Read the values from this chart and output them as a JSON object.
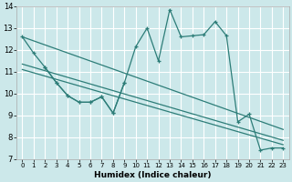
{
  "xlabel": "Humidex (Indice chaleur)",
  "bg_color": "#cce8ea",
  "grid_color": "#ffffff",
  "line_color": "#2d7d78",
  "xlim": [
    -0.5,
    23.5
  ],
  "ylim": [
    7,
    14
  ],
  "xticks": [
    0,
    1,
    2,
    3,
    4,
    5,
    6,
    7,
    8,
    9,
    10,
    11,
    12,
    13,
    14,
    15,
    16,
    17,
    18,
    19,
    20,
    21,
    22,
    23
  ],
  "yticks": [
    7,
    8,
    9,
    10,
    11,
    12,
    13,
    14
  ],
  "main_line_x": [
    0,
    1,
    2,
    3,
    4,
    5,
    6,
    7,
    8,
    9,
    10,
    11,
    12,
    13,
    14,
    15,
    16,
    17,
    18,
    19,
    20,
    21,
    22,
    23
  ],
  "main_line_y": [
    12.6,
    11.85,
    11.2,
    10.5,
    9.9,
    9.6,
    9.6,
    9.85,
    9.1,
    10.5,
    12.15,
    13.0,
    11.5,
    13.85,
    12.6,
    12.65,
    12.7,
    13.3,
    12.65,
    8.7,
    9.05,
    7.4,
    7.5,
    7.5
  ],
  "small_line_x": [
    2,
    3,
    4,
    5,
    6,
    7,
    8,
    9
  ],
  "small_line_y": [
    11.2,
    10.5,
    9.9,
    9.6,
    9.6,
    9.85,
    9.1,
    10.5
  ],
  "reg_line1_x": [
    0,
    23
  ],
  "reg_line1_y": [
    12.6,
    8.35
  ],
  "reg_line2_x": [
    0,
    23
  ],
  "reg_line2_y": [
    11.35,
    7.85
  ],
  "reg_line3_x": [
    0,
    23
  ],
  "reg_line3_y": [
    11.1,
    7.65
  ]
}
